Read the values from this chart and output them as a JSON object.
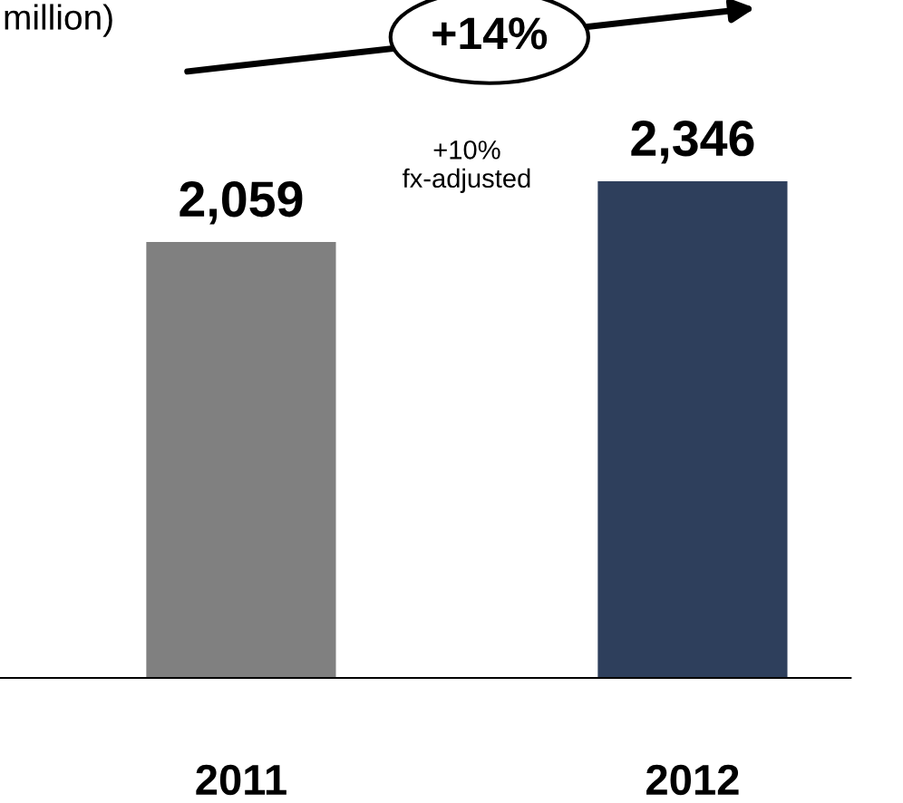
{
  "chart_data": {
    "type": "bar",
    "title": "million)",
    "categories": [
      "2011",
      "2012"
    ],
    "values": [
      2059,
      2346
    ],
    "colors": [
      "#808080",
      "#2e3f5c"
    ],
    "data_labels": true,
    "value_labels": [
      "2,059",
      "2,346"
    ],
    "annotations": [
      "+14%",
      "+10%\nfx-adjusted"
    ]
  }
}
